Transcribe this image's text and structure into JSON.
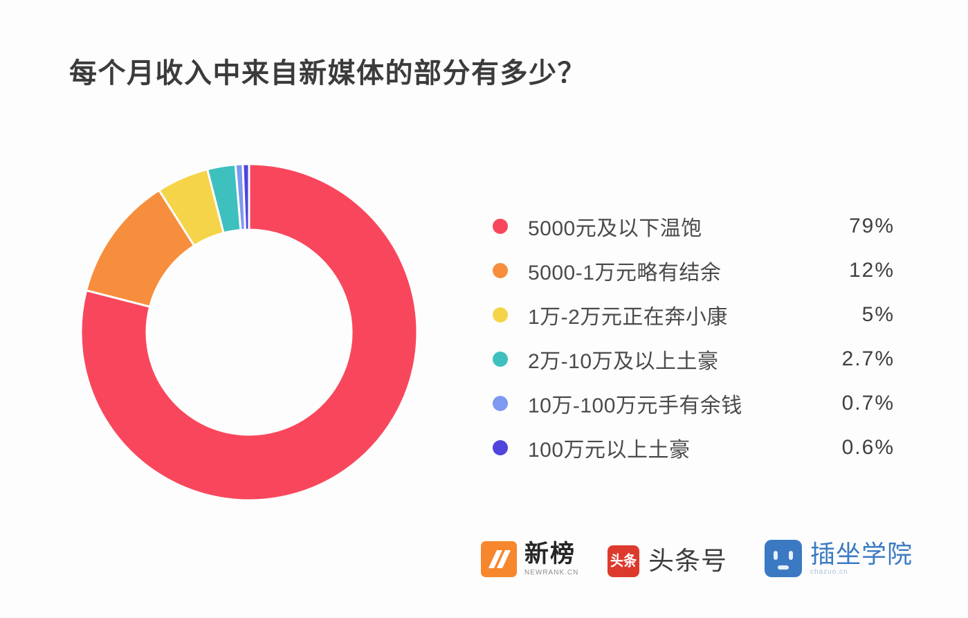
{
  "title": "每个月收入中来自新媒体的部分有多少？",
  "chart_data": {
    "type": "pie",
    "style": "donut",
    "title": "每个月收入中来自新媒体的部分有多少？",
    "direction": "clockwise",
    "start_angle_deg": 0,
    "donut_hole_ratio": 0.61,
    "legend_position": "right",
    "series": [
      {
        "label": "5000元及以下温饱",
        "value": 79,
        "display": "79%",
        "color": "#f8475c"
      },
      {
        "label": "5000-1万元略有结余",
        "value": 12,
        "display": "12%",
        "color": "#f78e3d"
      },
      {
        "label": "1万-2万元正在奔小康",
        "value": 5,
        "display": "5%",
        "color": "#f5d44a"
      },
      {
        "label": "2万-10万及以上土豪",
        "value": 2.7,
        "display": "2.7%",
        "color": "#3ec0be"
      },
      {
        "label": "10万-100万元手有余钱",
        "value": 0.7,
        "display": "0.7%",
        "color": "#7d99f0"
      },
      {
        "label": "100万元以上土豪",
        "value": 0.6,
        "display": "0.6%",
        "color": "#5044dd"
      }
    ]
  },
  "footer": {
    "logos": [
      {
        "name": "新榜",
        "subtext": "NEWRANK.CN",
        "icon": "newrank-n-icon",
        "icon_color": "#f6872d"
      },
      {
        "name": "头条号",
        "icon_text": "头条",
        "icon": "toutiao-icon",
        "icon_color": "#dd3a2e"
      },
      {
        "name": "插坐学院",
        "subtext": "chazuo.cn",
        "icon": "chazuo-face-icon",
        "icon_color": "#3b7ac2"
      }
    ]
  },
  "colors": {
    "background": "#fdfdfd",
    "title_text": "#3b3b3b",
    "legend_text": "#4a4a4a",
    "value_text": "#3f3f3f",
    "slice_gap": "#ffffff"
  }
}
